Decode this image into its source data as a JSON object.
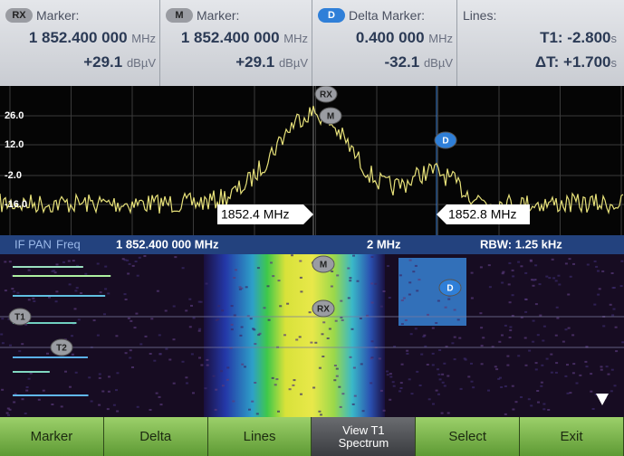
{
  "header": {
    "columns": [
      {
        "badge": "RX",
        "label": "Marker:",
        "freq": "1 852.400 000",
        "freq_unit": "MHz",
        "level": "+29.1",
        "level_unit": "dBµV"
      },
      {
        "badge": "M",
        "label": "Marker:",
        "freq": "1 852.400 000",
        "freq_unit": "MHz",
        "level": "+29.1",
        "level_unit": "dBµV"
      },
      {
        "badge": "D",
        "label": "Delta Marker:",
        "freq": "0.400 000",
        "freq_unit": "MHz",
        "level": "-32.1",
        "level_unit": "dBµV"
      }
    ],
    "lines": {
      "label": "Lines:",
      "t1_label": "T1:",
      "t1": "-2.800",
      "t1_unit": "s",
      "dt_label": "ΔT:",
      "dt": "+1.700",
      "dt_unit": "s"
    }
  },
  "spectrum": {
    "y_labels": [
      "26.0",
      "12.0",
      "-2.0",
      "-16.0"
    ],
    "markers": [
      "RX",
      "M",
      "D"
    ],
    "freq_labels": [
      "1852.4 MHz",
      "1852.8 MHz"
    ]
  },
  "status": {
    "mode": "IF PAN",
    "field": "Freq",
    "center": "1 852.400 000 MHz",
    "span": "2 MHz",
    "rbw": "RBW: 1.25 kHz"
  },
  "waterfall": {
    "markers": [
      "M",
      "RX",
      "D",
      "T1",
      "T2"
    ]
  },
  "softkeys": [
    "Marker",
    "Delta",
    "Lines",
    "View T1 Spectrum",
    "Select",
    "Exit"
  ]
}
